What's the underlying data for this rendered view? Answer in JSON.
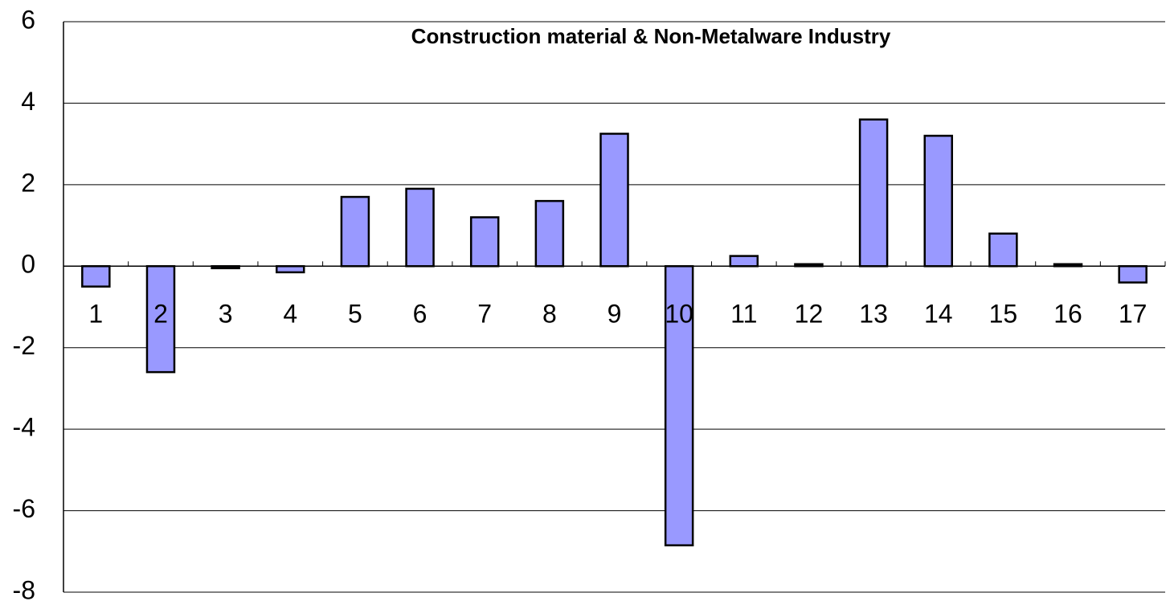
{
  "chart_data": {
    "type": "bar",
    "title": "Construction material & Non-Metalware Industry",
    "categories": [
      "1",
      "2",
      "3",
      "4",
      "5",
      "6",
      "7",
      "8",
      "9",
      "10",
      "11",
      "12",
      "13",
      "14",
      "15",
      "16",
      "17"
    ],
    "values": [
      -0.5,
      -2.6,
      -0.05,
      -0.15,
      1.7,
      1.9,
      1.2,
      1.6,
      3.25,
      -6.85,
      0.25,
      0.05,
      3.6,
      3.2,
      0.8,
      0.05,
      -0.4
    ],
    "color": "#9999ff",
    "ylim": [
      -8,
      6
    ],
    "yticks": [
      -8,
      -6,
      -4,
      -2,
      0,
      2,
      4,
      6
    ],
    "grid": true
  }
}
